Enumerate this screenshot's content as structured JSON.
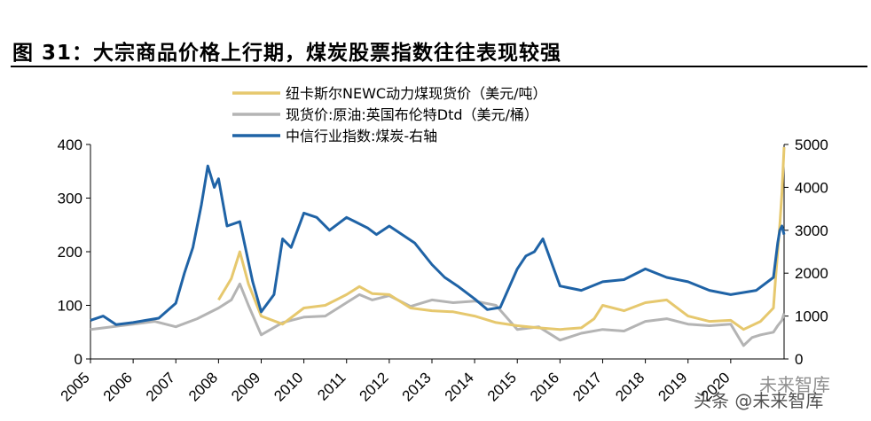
{
  "title": "图 31：大宗商品价格上行期，煤炭股票指数往往表现较强",
  "watermark": {
    "text1": "头条 @未来智库",
    "text2": "未来智库"
  },
  "chart_data": {
    "type": "line",
    "x_ticks": [
      "2005",
      "2006",
      "2007",
      "2008",
      "2009",
      "2010",
      "2011",
      "2012",
      "2013",
      "2014",
      "2015",
      "2016",
      "2017",
      "2018",
      "2019",
      "2020"
    ],
    "x_range": [
      2005,
      2021.25
    ],
    "y_left": {
      "ylim": [
        0,
        400
      ],
      "ticks": [
        0,
        100,
        200,
        300,
        400
      ]
    },
    "y_right": {
      "ylim": [
        0,
        5000
      ],
      "ticks": [
        0,
        1000,
        2000,
        3000,
        4000,
        5000
      ]
    },
    "grid": false,
    "legend_position": "top",
    "series": [
      {
        "name": "纽卡斯尔NEWC动力煤现货价（美元/吨）",
        "axis": "left",
        "color": "#E6C86E",
        "x": [
          2005,
          2005.5,
          2006,
          2006.5,
          2007,
          2007.5,
          2008,
          2008.3,
          2008.5,
          2008.7,
          2009,
          2009.5,
          2010,
          2010.5,
          2011,
          2011.3,
          2011.6,
          2012,
          2012.5,
          2013,
          2013.5,
          2014,
          2014.5,
          2015,
          2015.5,
          2016,
          2016.5,
          2016.8,
          2017,
          2017.5,
          2018,
          2018.5,
          2019,
          2019.5,
          2020,
          2020.3,
          2020.7,
          2021,
          2021.05,
          2021.1,
          2021.15,
          2021.2,
          2021.25
        ],
        "y": [
          null,
          null,
          null,
          null,
          null,
          null,
          110,
          150,
          200,
          140,
          80,
          65,
          95,
          100,
          120,
          135,
          122,
          120,
          95,
          90,
          88,
          80,
          68,
          62,
          58,
          55,
          58,
          75,
          100,
          90,
          105,
          110,
          80,
          70,
          72,
          55,
          70,
          95,
          150,
          200,
          250,
          310,
          395
        ]
      },
      {
        "name": "现货价:原油:英国布伦特Dtd（美元/桶）",
        "axis": "left",
        "color": "#B4B4B4",
        "x": [
          2005,
          2005.5,
          2006,
          2006.5,
          2007,
          2007.5,
          2008,
          2008.3,
          2008.5,
          2008.7,
          2009,
          2009.5,
          2010,
          2010.5,
          2011,
          2011.3,
          2011.6,
          2012,
          2012.5,
          2013,
          2013.5,
          2014,
          2014.5,
          2015,
          2015.5,
          2016,
          2016.5,
          2017,
          2017.5,
          2018,
          2018.5,
          2019,
          2019.5,
          2020,
          2020.3,
          2020.5,
          2020.7,
          2021,
          2021.1,
          2021.2,
          2021.25
        ],
        "y": [
          55,
          60,
          65,
          70,
          60,
          75,
          95,
          110,
          140,
          100,
          45,
          68,
          78,
          80,
          105,
          120,
          110,
          118,
          98,
          110,
          105,
          108,
          100,
          55,
          60,
          35,
          48,
          55,
          52,
          70,
          75,
          65,
          62,
          65,
          25,
          40,
          45,
          50,
          62,
          72,
          85
        ]
      },
      {
        "name": "中信行业指数:煤炭-右轴",
        "axis": "right",
        "color": "#1F63A6",
        "x": [
          2005,
          2005.3,
          2005.6,
          2006,
          2006.3,
          2006.6,
          2007,
          2007.2,
          2007.4,
          2007.6,
          2007.75,
          2007.9,
          2008,
          2008.2,
          2008.5,
          2008.8,
          2009,
          2009.3,
          2009.5,
          2009.7,
          2010,
          2010.3,
          2010.6,
          2011,
          2011.2,
          2011.5,
          2011.7,
          2012,
          2012.3,
          2012.6,
          2013,
          2013.3,
          2013.6,
          2014,
          2014.3,
          2014.6,
          2015,
          2015.2,
          2015.4,
          2015.6,
          2016,
          2016.5,
          2017,
          2017.5,
          2018,
          2018.5,
          2019,
          2019.5,
          2020,
          2020.3,
          2020.6,
          2021,
          2021.05,
          2021.1,
          2021.15,
          2021.2,
          2021.25
        ],
        "y": [
          900,
          1000,
          800,
          850,
          900,
          950,
          1300,
          2000,
          2600,
          3600,
          4500,
          4000,
          4200,
          3100,
          3200,
          1800,
          1100,
          1500,
          2800,
          2600,
          3400,
          3300,
          3000,
          3300,
          3200,
          3050,
          2900,
          3100,
          2900,
          2700,
          2200,
          1900,
          1700,
          1400,
          1150,
          1200,
          2100,
          2400,
          2500,
          2800,
          1700,
          1600,
          1800,
          1850,
          2100,
          1900,
          1800,
          1600,
          1500,
          1550,
          1600,
          1900,
          2300,
          2700,
          3000,
          3100,
          2900
        ]
      }
    ]
  }
}
